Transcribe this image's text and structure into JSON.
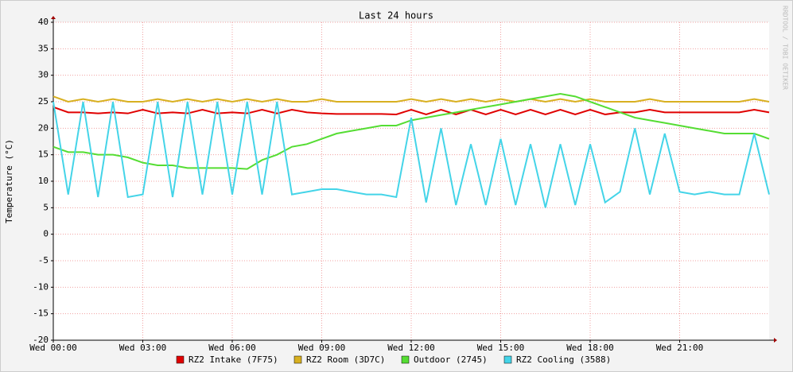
{
  "chart_data": {
    "type": "line",
    "title": "Last 24 hours",
    "y_label": "Temperature (°C)",
    "watermark": "RRDTOOL / TOBI OETIKER",
    "x": [
      0,
      0.5,
      1,
      1.5,
      2,
      2.5,
      3,
      3.5,
      4,
      4.5,
      5,
      5.5,
      6,
      6.5,
      7,
      7.5,
      8,
      8.5,
      9,
      9.5,
      10,
      10.5,
      11,
      11.5,
      12,
      12.5,
      13,
      13.5,
      14,
      14.5,
      15,
      15.5,
      16,
      16.5,
      17,
      17.5,
      18,
      18.5,
      19,
      19.5,
      20,
      20.5,
      21,
      21.5,
      22,
      22.5,
      23,
      23.5,
      24
    ],
    "xlim": [
      0,
      24
    ],
    "xticks": [
      {
        "value": 0,
        "label": "Wed 00:00"
      },
      {
        "value": 3,
        "label": "Wed 03:00"
      },
      {
        "value": 6,
        "label": "Wed 06:00"
      },
      {
        "value": 9,
        "label": "Wed 09:00"
      },
      {
        "value": 12,
        "label": "Wed 12:00"
      },
      {
        "value": 15,
        "label": "Wed 15:00"
      },
      {
        "value": 18,
        "label": "Wed 18:00"
      },
      {
        "value": 21,
        "label": "Wed 21:00"
      }
    ],
    "ylim": [
      -20,
      40
    ],
    "yticks": [
      -20,
      -15,
      -10,
      -5,
      0,
      5,
      10,
      15,
      20,
      25,
      30,
      35,
      40
    ],
    "grid": true,
    "series": [
      {
        "name": "RZ2 Intake (7F75)",
        "color": "#e00000",
        "values": [
          24,
          23,
          23,
          22.8,
          23,
          22.8,
          23.5,
          22.8,
          23,
          22.8,
          23.5,
          22.8,
          23,
          22.8,
          23.5,
          22.8,
          23.5,
          23,
          22.8,
          22.7,
          22.7,
          22.7,
          22.7,
          22.6,
          23.5,
          22.6,
          23.5,
          22.6,
          23.5,
          22.6,
          23.5,
          22.6,
          23.5,
          22.6,
          23.5,
          22.6,
          23.5,
          22.6,
          23,
          23,
          23.5,
          23,
          23,
          23,
          23,
          23,
          23,
          23.5,
          23
        ]
      },
      {
        "name": "RZ2 Room (3D7C)",
        "color": "#d8b020",
        "values": [
          26,
          25,
          25.5,
          25,
          25.5,
          25,
          25,
          25.5,
          25,
          25.5,
          25,
          25.5,
          25,
          25.5,
          25,
          25.5,
          25,
          25,
          25.5,
          25,
          25,
          25,
          25,
          25,
          25.5,
          25,
          25.5,
          25,
          25.5,
          25,
          25.5,
          25,
          25.5,
          25,
          25.5,
          25,
          25.5,
          25,
          25,
          25,
          25.5,
          25,
          25,
          25,
          25,
          25,
          25,
          25.5,
          25
        ]
      },
      {
        "name": "Outdoor (2745)",
        "color": "#55dd33",
        "values": [
          16.5,
          15.5,
          15.5,
          15,
          15,
          14.5,
          13.5,
          13,
          13,
          12.5,
          12.5,
          12.5,
          12.5,
          12.3,
          14,
          15,
          16.5,
          17,
          18,
          19,
          19.5,
          20,
          20.5,
          20.5,
          21.5,
          22,
          22.5,
          23,
          23.5,
          24,
          24.5,
          25,
          25.5,
          26,
          26.5,
          26,
          25,
          24,
          23,
          22,
          21.5,
          21,
          20.5,
          20,
          19.5,
          19,
          19,
          19,
          18
        ]
      },
      {
        "name": "RZ2 Cooling (3588)",
        "color": "#44d4e8",
        "values": [
          25,
          7.5,
          25,
          7,
          25,
          7,
          7.5,
          25,
          7,
          25,
          7.5,
          25,
          7.5,
          25,
          7.5,
          25,
          7.5,
          8,
          8.5,
          8.5,
          8,
          7.5,
          7.5,
          7,
          22,
          6,
          20,
          5.5,
          17,
          5.5,
          18,
          5.5,
          17,
          5,
          17,
          5.5,
          17,
          6,
          8,
          20,
          7.5,
          19,
          8,
          7.5,
          8,
          7.5,
          7.5,
          19,
          7.5
        ]
      }
    ]
  }
}
